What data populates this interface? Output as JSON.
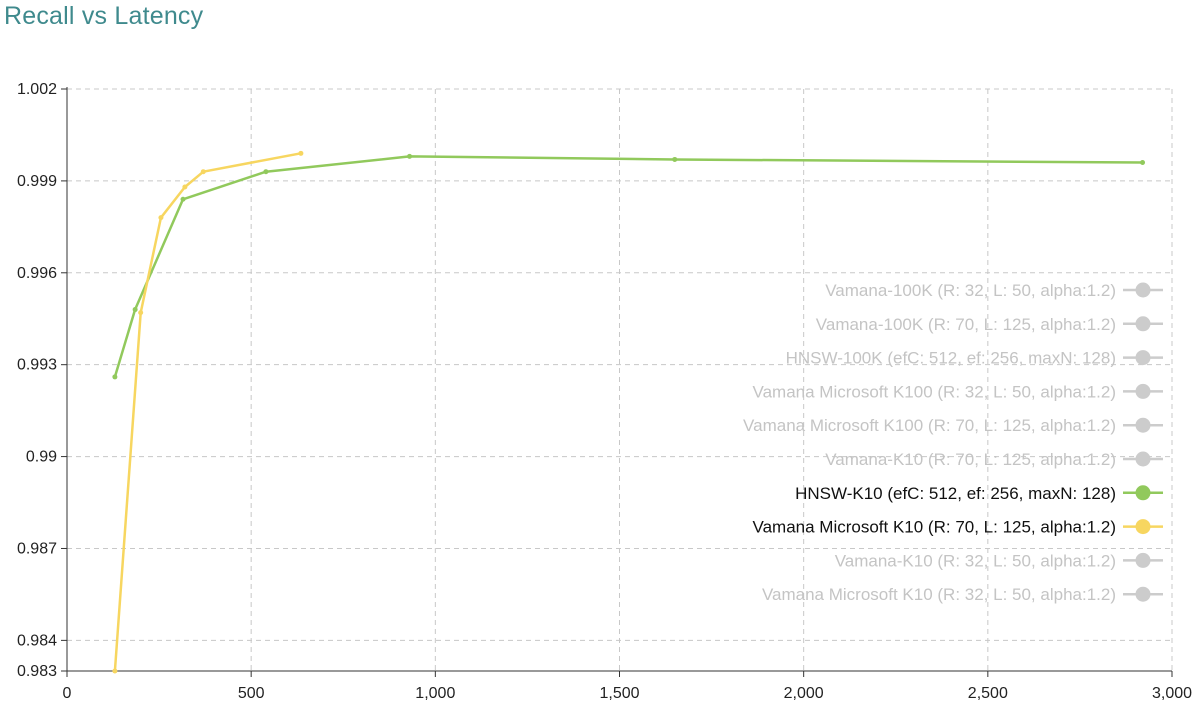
{
  "title": "Recall vs Latency",
  "chart_data": {
    "type": "line",
    "title": "Recall vs Latency",
    "xlabel": "",
    "ylabel": "",
    "xlim": [
      0,
      3000
    ],
    "ylim": [
      0.983,
      1.002
    ],
    "x_ticks": [
      0,
      500,
      1000,
      1500,
      2000,
      2500,
      3000
    ],
    "x_tick_labels": [
      "0",
      "500",
      "1,000",
      "1,500",
      "2,000",
      "2,500",
      "3,000"
    ],
    "y_ticks": [
      0.983,
      0.984,
      0.987,
      0.99,
      0.993,
      0.996,
      0.999,
      1.002
    ],
    "y_tick_labels": [
      "0.983",
      "0.984",
      "0.987",
      "0.99",
      "0.993",
      "0.996",
      "0.999",
      "1.002"
    ],
    "grid": true,
    "legend_position": "right",
    "series": [
      {
        "name": "Vamana-100K (R: 32, L: 50, alpha:1.2)",
        "active": false,
        "color": "#cccccc",
        "points": []
      },
      {
        "name": "Vamana-100K (R: 70, L: 125, alpha:1.2)",
        "active": false,
        "color": "#cccccc",
        "points": []
      },
      {
        "name": "HNSW-100K (efC: 512, ef: 256, maxN: 128)",
        "active": false,
        "color": "#cccccc",
        "points": []
      },
      {
        "name": "Vamana Microsoft K100 (R: 32, L: 50, alpha:1.2)",
        "active": false,
        "color": "#cccccc",
        "points": []
      },
      {
        "name": "Vamana Microsoft K100 (R: 70, L: 125, alpha:1.2)",
        "active": false,
        "color": "#cccccc",
        "points": []
      },
      {
        "name": "Vamana-K10 (R: 70, L: 125, alpha:1.2)",
        "active": false,
        "color": "#cccccc",
        "points": []
      },
      {
        "name": "HNSW-K10 (efC: 512, ef: 256, maxN: 128)",
        "active": true,
        "color": "#91c95c",
        "points": [
          [
            130,
            0.9926
          ],
          [
            185,
            0.9948
          ],
          [
            315,
            0.9984
          ],
          [
            540,
            0.9993
          ],
          [
            930,
            0.9998
          ],
          [
            1650,
            0.9997
          ],
          [
            2920,
            0.9996
          ]
        ]
      },
      {
        "name": "Vamana Microsoft K10 (R: 70, L: 125, alpha:1.2)",
        "active": true,
        "color": "#f7d660",
        "points": [
          [
            130,
            0.983
          ],
          [
            200,
            0.9947
          ],
          [
            255,
            0.9978
          ],
          [
            320,
            0.9988
          ],
          [
            370,
            0.9993
          ],
          [
            635,
            0.9999
          ]
        ]
      },
      {
        "name": "Vamana-K10 (R: 32, L: 50, alpha:1.2)",
        "active": false,
        "color": "#cccccc",
        "points": []
      },
      {
        "name": "Vamana Microsoft K10 (R: 32, L: 50, alpha:1.2)",
        "active": false,
        "color": "#cccccc",
        "points": []
      }
    ]
  }
}
